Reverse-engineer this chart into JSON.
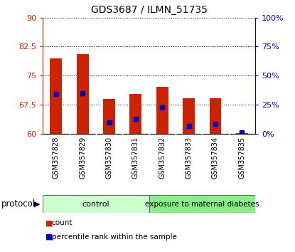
{
  "title": "GDS3687 / ILMN_51735",
  "samples": [
    "GSM357828",
    "GSM357829",
    "GSM357830",
    "GSM357831",
    "GSM357832",
    "GSM357833",
    "GSM357834",
    "GSM357835"
  ],
  "red_values": [
    79.5,
    80.5,
    69.0,
    70.2,
    72.0,
    69.2,
    69.2,
    60.15
  ],
  "blue_values_left": [
    70.2,
    70.5,
    62.8,
    63.8,
    66.7,
    62.0,
    62.5,
    60.3
  ],
  "ylim_left": [
    60,
    90
  ],
  "ylim_right": [
    0,
    100
  ],
  "yticks_left": [
    60,
    67.5,
    75,
    82.5,
    90
  ],
  "yticks_right": [
    0,
    25,
    50,
    75,
    100
  ],
  "ytick_labels_left": [
    "60",
    "67.5",
    "75",
    "82.5",
    "90"
  ],
  "ytick_labels_right": [
    "0%",
    "25%",
    "50%",
    "75%",
    "100%"
  ],
  "bar_color": "#cc2200",
  "blue_color": "#0000bb",
  "bar_width": 0.45,
  "bar_bottom": 60,
  "background_color": "#ffffff",
  "axis_left_color": "#cc2200",
  "axis_right_color": "#0000bb",
  "grid_color": "#000000",
  "protocol_label": "protocol",
  "group_labels": [
    "control",
    "exposure to maternal diabetes"
  ],
  "group_colors": [
    "#ccffcc",
    "#88ee88"
  ],
  "legend_labels": [
    "count",
    "percentile rank within the sample"
  ],
  "legend_colors": [
    "#cc2200",
    "#0000bb"
  ]
}
